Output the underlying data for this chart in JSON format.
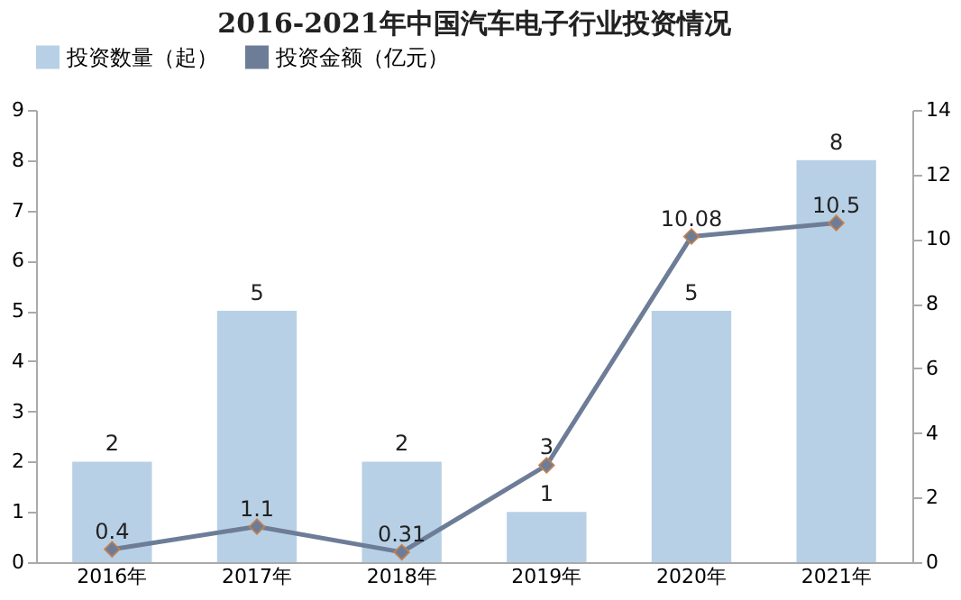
{
  "chart_data": {
    "type": "bar",
    "title": "2016-2021年中国汽车电子行业投资情况",
    "categories": [
      "2016年",
      "2017年",
      "2018年",
      "2019年",
      "2020年",
      "2021年"
    ],
    "series": [
      {
        "name": "投资数量（起）",
        "color": "#b7d0e6",
        "values": [
          2,
          5,
          2,
          1,
          5,
          8
        ]
      },
      {
        "name": "投资金额（亿元）",
        "type": "line",
        "axis": "y2",
        "color": "#6d7d97",
        "values": [
          0.4,
          1.1,
          0.31,
          3,
          10.08,
          10.5
        ]
      }
    ],
    "ylim": [
      0,
      9
    ],
    "yticks": [
      0,
      1,
      2,
      3,
      4,
      5,
      6,
      7,
      8,
      9
    ],
    "y2lim": [
      0,
      14
    ],
    "y2ticks": [
      0,
      2,
      4,
      6,
      8,
      10,
      12,
      14
    ],
    "data_labels": true,
    "legend": "top",
    "grid": false,
    "marker": "diamond"
  }
}
